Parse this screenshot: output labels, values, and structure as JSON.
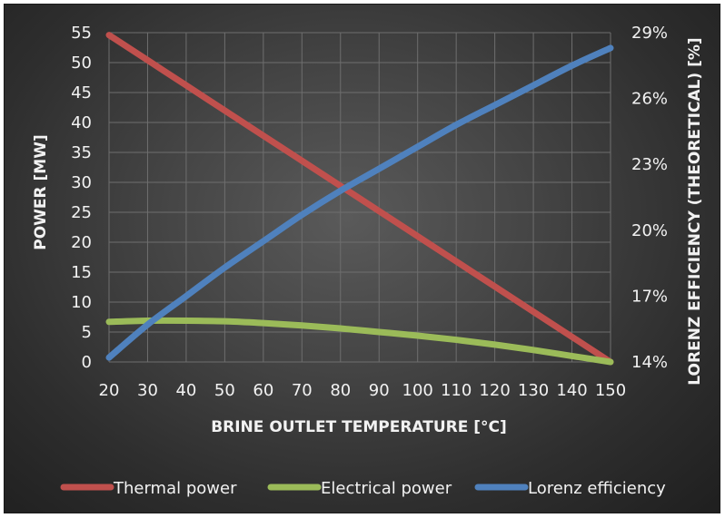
{
  "chart_data": {
    "type": "line",
    "xlabel": "BRINE OUTLET TEMPERATURE [°C]",
    "ylabel": "POWER [MW]",
    "y2label": "LORENZ EFFICIENCY (THEORETICAL) [%]",
    "x": [
      20,
      30,
      40,
      50,
      60,
      70,
      80,
      90,
      100,
      110,
      120,
      130,
      140,
      150
    ],
    "xlim": [
      20,
      150
    ],
    "ylim": [
      0,
      55
    ],
    "y2lim": [
      14,
      29
    ],
    "x_ticks": [
      "20",
      "30",
      "40",
      "50",
      "60",
      "70",
      "80",
      "90",
      "100",
      "110",
      "120",
      "130",
      "140",
      "150"
    ],
    "y_ticks": [
      "0",
      "5",
      "10",
      "15",
      "20",
      "25",
      "30",
      "35",
      "40",
      "45",
      "50",
      "55"
    ],
    "y2_ticks": [
      "14%",
      "17%",
      "20%",
      "23%",
      "26%",
      "29%"
    ],
    "y2_tick_values": [
      14,
      17,
      20,
      23,
      26,
      29
    ],
    "grid": true,
    "legend_position": "bottom",
    "series": [
      {
        "name": "Thermal power",
        "axis": "left",
        "color": "#c0504d",
        "values": [
          54.6,
          50.4,
          46.2,
          42.0,
          37.8,
          33.6,
          29.4,
          25.2,
          21.0,
          16.8,
          12.6,
          8.4,
          4.2,
          0.0
        ]
      },
      {
        "name": "Electrical power",
        "axis": "left",
        "color": "#9bbb59",
        "values": [
          6.7,
          6.9,
          6.9,
          6.8,
          6.5,
          6.1,
          5.6,
          5.0,
          4.4,
          3.7,
          2.9,
          2.0,
          1.0,
          0.0
        ]
      },
      {
        "name": "Lorenz efficiency",
        "axis": "right",
        "color": "#4f81bd",
        "values": [
          14.2,
          15.7,
          17.0,
          18.3,
          19.5,
          20.7,
          21.8,
          22.8,
          23.8,
          24.8,
          25.7,
          26.6,
          27.5,
          28.3
        ]
      }
    ]
  }
}
